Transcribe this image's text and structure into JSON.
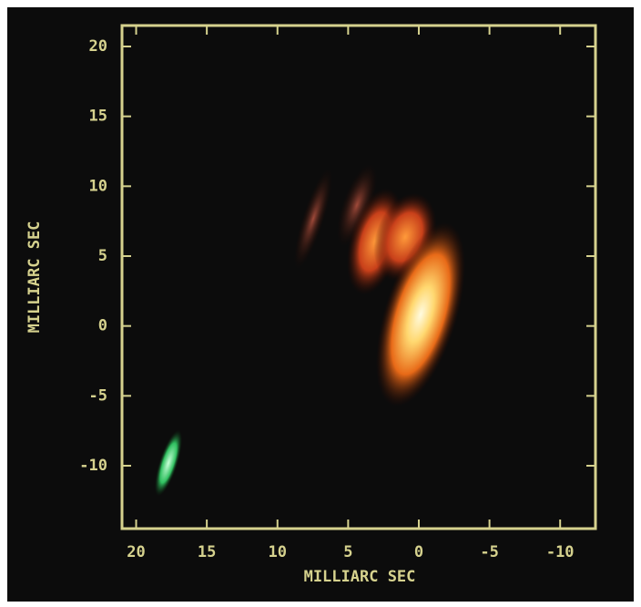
{
  "chart_data": {
    "type": "image",
    "x_label": "MILLIARC SEC",
    "y_label": "MILLIARC SEC",
    "xlim": [
      21,
      -12.5
    ],
    "xticks": [
      20,
      15,
      10,
      5,
      0,
      -5,
      -10
    ],
    "ylim": [
      -14.5,
      21.5
    ],
    "yticks": [
      20,
      15,
      10,
      5,
      0,
      -5,
      -10
    ],
    "frame_color": "#d6d28e",
    "background": "#0c0c0c"
  }
}
